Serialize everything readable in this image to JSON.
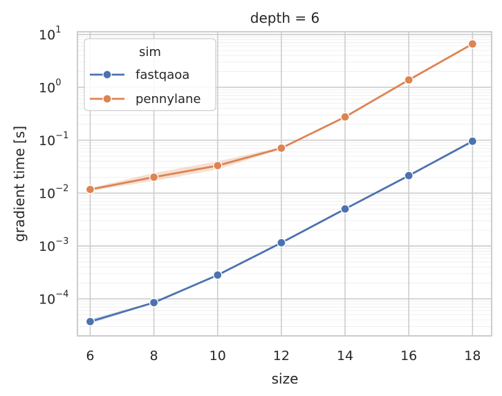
{
  "chart_data": {
    "type": "line",
    "title": "depth = 6",
    "xlabel": "size",
    "ylabel": "gradient time [s]",
    "yscale": "log",
    "xlim": [
      5.6,
      18.6
    ],
    "ylim_log10": [
      -4.7,
      1.05
    ],
    "x": [
      6,
      8,
      10,
      12,
      14,
      16,
      18
    ],
    "x_ticks": [
      "6",
      "8",
      "10",
      "12",
      "14",
      "16",
      "18"
    ],
    "y_ticks": [
      {
        "base": "10",
        "exp": "1",
        "value": 10
      },
      {
        "base": "10",
        "exp": "0",
        "value": 1
      },
      {
        "base": "10",
        "exp": "−1",
        "value": 0.1
      },
      {
        "base": "10",
        "exp": "−2",
        "value": 0.01
      },
      {
        "base": "10",
        "exp": "−3",
        "value": 0.001
      },
      {
        "base": "10",
        "exp": "−4",
        "value": 0.0001
      }
    ],
    "grid": true,
    "legend": {
      "title": "sim",
      "position": "top-left"
    },
    "series": [
      {
        "name": "fastqaoa",
        "color": "#4c72b0",
        "values": [
          3.72e-05,
          8.51e-05,
          0.000282,
          0.00115,
          0.00501,
          0.0214,
          0.0955
        ],
        "ci_low": [
          3.4e-05,
          8.3e-05,
          0.000278,
          0.00113,
          0.00495,
          0.0211,
          0.0945
        ],
        "ci_high": [
          4.1e-05,
          8.75e-05,
          0.000287,
          0.00117,
          0.00507,
          0.0217,
          0.0965
        ]
      },
      {
        "name": "pennylane",
        "color": "#dd8452",
        "values": [
          0.0117,
          0.02,
          0.0331,
          0.0708,
          0.275,
          1.38,
          6.61
        ],
        "ci_low": [
          0.011,
          0.017,
          0.028,
          0.068,
          0.27,
          1.35,
          6.5
        ],
        "ci_high": [
          0.0125,
          0.024,
          0.04,
          0.074,
          0.282,
          1.41,
          6.75
        ]
      }
    ]
  }
}
